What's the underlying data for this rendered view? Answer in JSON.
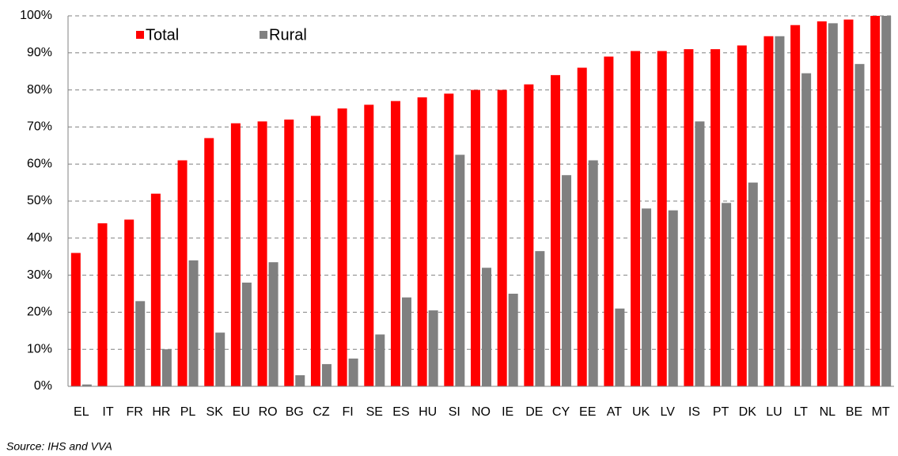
{
  "chart_data": {
    "type": "bar",
    "categories": [
      "EL",
      "IT",
      "FR",
      "HR",
      "PL",
      "SK",
      "EU",
      "RO",
      "BG",
      "CZ",
      "FI",
      "SE",
      "ES",
      "HU",
      "SI",
      "NO",
      "IE",
      "DE",
      "CY",
      "EE",
      "AT",
      "UK",
      "LV",
      "IS",
      "PT",
      "DK",
      "LU",
      "LT",
      "NL",
      "BE",
      "MT"
    ],
    "series": [
      {
        "name": "Total",
        "color": "#ff0000",
        "values": [
          36,
          44,
          45,
          52,
          61,
          67,
          71,
          71.5,
          72,
          73,
          75,
          76,
          77,
          78,
          79,
          80,
          80,
          81.5,
          84,
          86,
          89,
          90.5,
          90.5,
          91,
          91,
          92,
          94.5,
          97.5,
          98.5,
          99,
          100
        ]
      },
      {
        "name": "Rural",
        "color": "#808080",
        "values": [
          0.5,
          0,
          23,
          10,
          34,
          14.5,
          28,
          33.5,
          3,
          6,
          7.5,
          14,
          24,
          20.5,
          62.5,
          32,
          25,
          36.5,
          57,
          61,
          21,
          48,
          47.5,
          71.5,
          49.5,
          55,
          94.5,
          84.5,
          98,
          87,
          100
        ]
      }
    ],
    "ylim": [
      0,
      100
    ],
    "yticks": [
      {
        "value": 0,
        "label": "0%"
      },
      {
        "value": 10,
        "label": "10%"
      },
      {
        "value": 20,
        "label": "20%"
      },
      {
        "value": 30,
        "label": "30%"
      },
      {
        "value": 40,
        "label": "40%"
      },
      {
        "value": 50,
        "label": "50%"
      },
      {
        "value": 60,
        "label": "60%"
      },
      {
        "value": 70,
        "label": "70%"
      },
      {
        "value": 80,
        "label": "80%"
      },
      {
        "value": 90,
        "label": "90%"
      },
      {
        "value": 100,
        "label": "100%"
      }
    ],
    "grid": true,
    "legend": "top-left",
    "source": "Source: IHS and VVA"
  }
}
